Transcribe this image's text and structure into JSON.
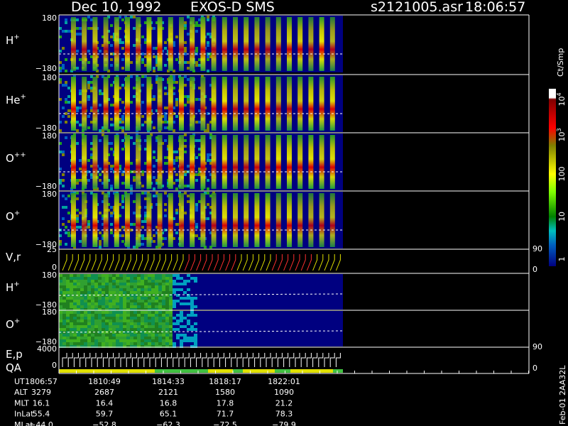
{
  "header": {
    "date": "Dec 10, 1992",
    "instrument": "EXOS-D SMS",
    "file": "s2121005.asr",
    "time": "18:06:57"
  },
  "panels": [
    {
      "label": "H",
      "sup": "+",
      "top": "180",
      "bottom": "−180"
    },
    {
      "label": "He",
      "sup": "+",
      "top": "180",
      "bottom": "−180"
    },
    {
      "label": "O",
      "sup": "++",
      "top": "180",
      "bottom": "−180"
    },
    {
      "label": "O",
      "sup": "+",
      "top": "180",
      "bottom": "−180"
    }
  ],
  "vr_panel": {
    "label": "V,r",
    "top": "25",
    "bottom": "0",
    "right_top": "90",
    "right_bottom": "0"
  },
  "low_panels": [
    {
      "label": "H",
      "sup": "+",
      "top": "180",
      "bottom": "−180"
    },
    {
      "label": "O",
      "sup": "+",
      "top": "180",
      "bottom": "−180"
    }
  ],
  "ep_panel": {
    "label": "E,p",
    "label2": "QA",
    "top": "4000",
    "bottom": "0",
    "right_top": "90",
    "right_bottom": "0"
  },
  "colorbar": {
    "unit": "Ct/Smp",
    "ticks": [
      {
        "label": "10",
        "sup": "4"
      },
      {
        "label": "10",
        "sup": "3"
      },
      {
        "label": "100"
      },
      {
        "label": "10"
      },
      {
        "label": "1"
      }
    ]
  },
  "footer": {
    "row_labels": [
      "UT",
      "ALT",
      "MLT",
      "InLat",
      "MLat"
    ],
    "rows": [
      [
        "1806:57",
        "1810:49",
        "1814:33",
        "1818:17",
        "1822:01"
      ],
      [
        "3279",
        "2687",
        "2121",
        "1580",
        "1090"
      ],
      [
        "16.1",
        "16.4",
        "16.8",
        "17.8",
        "21.2"
      ],
      [
        "55.4",
        "59.7",
        "65.1",
        "71.7",
        "78.3"
      ],
      [
        "−44.0",
        "−52.8",
        "−62.3",
        "−72.5",
        "−79.9"
      ]
    ]
  },
  "side_note": "Feb-01 2AA32L"
}
